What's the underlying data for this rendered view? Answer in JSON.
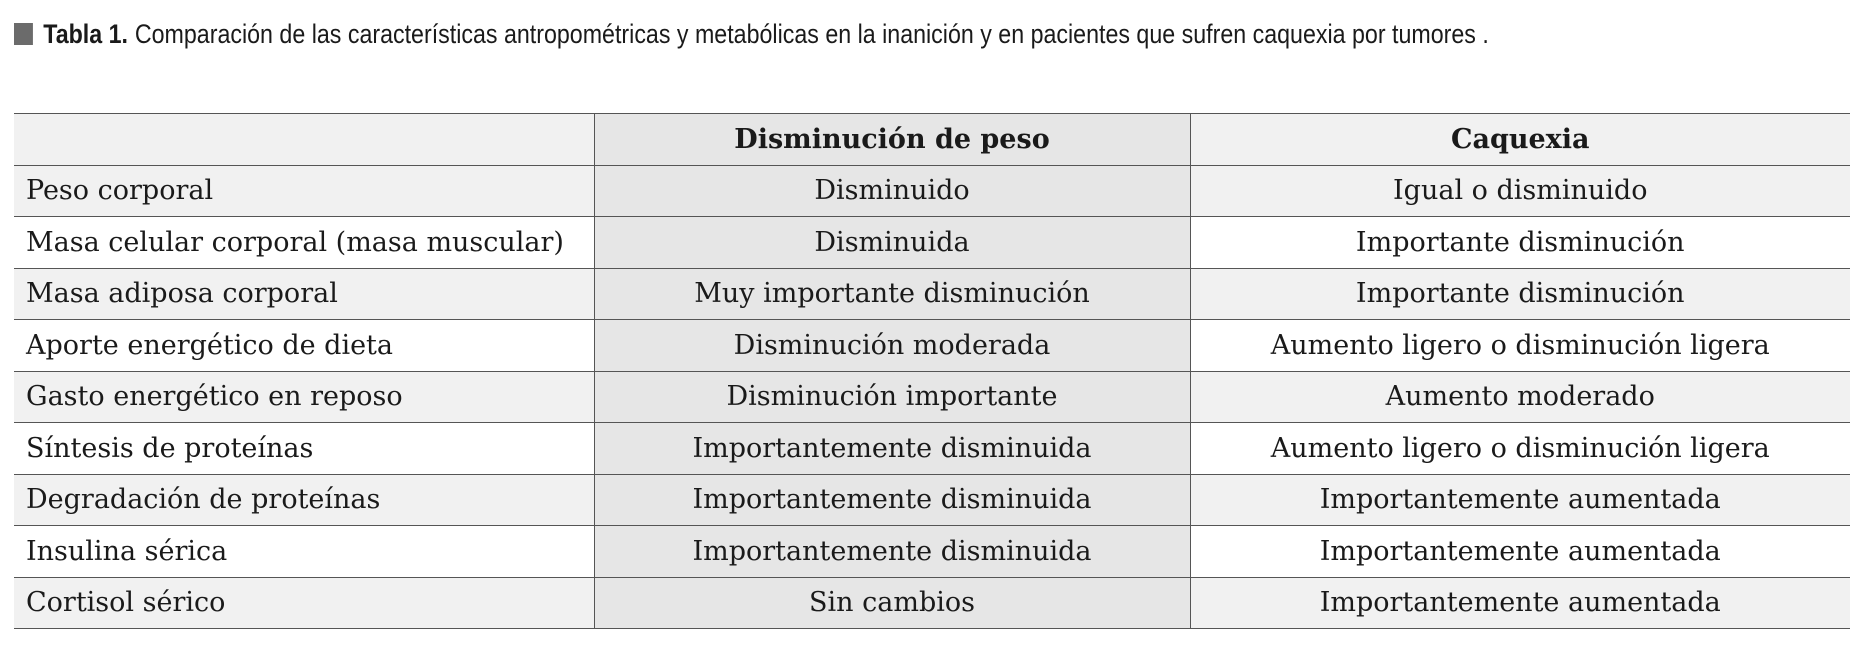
{
  "caption": {
    "label": "Tabla 1.",
    "text": "Comparación de las características antropométricas y metabólicas en la inanición y en pacientes que sufren caquexia por tumores ."
  },
  "table": {
    "headers": [
      "",
      "Disminución de peso",
      "Caquexia"
    ],
    "rows": [
      [
        "Peso corporal",
        "Disminuido",
        "Igual o disminuido"
      ],
      [
        "Masa celular corporal (masa muscular)",
        "Disminuida",
        "Importante disminución"
      ],
      [
        "Masa adiposa corporal",
        "Muy importante disminución",
        "Importante disminución"
      ],
      [
        "Aporte energético de dieta",
        "Disminución moderada",
        "Aumento ligero o disminución ligera"
      ],
      [
        "Gasto energético en reposo",
        "Disminución importante",
        "Aumento moderado"
      ],
      [
        "Síntesis de proteínas",
        "Importantemente disminuida",
        "Aumento ligero o disminución ligera"
      ],
      [
        "Degradación de proteínas",
        "Importantemente disminuida",
        "Importantemente aumentada"
      ],
      [
        "Insulina sérica",
        "Importantemente disminuida",
        "Importantemente aumentada"
      ],
      [
        "Cortisol sérico",
        "Sin cambios",
        "Importantemente aumentada"
      ]
    ]
  }
}
